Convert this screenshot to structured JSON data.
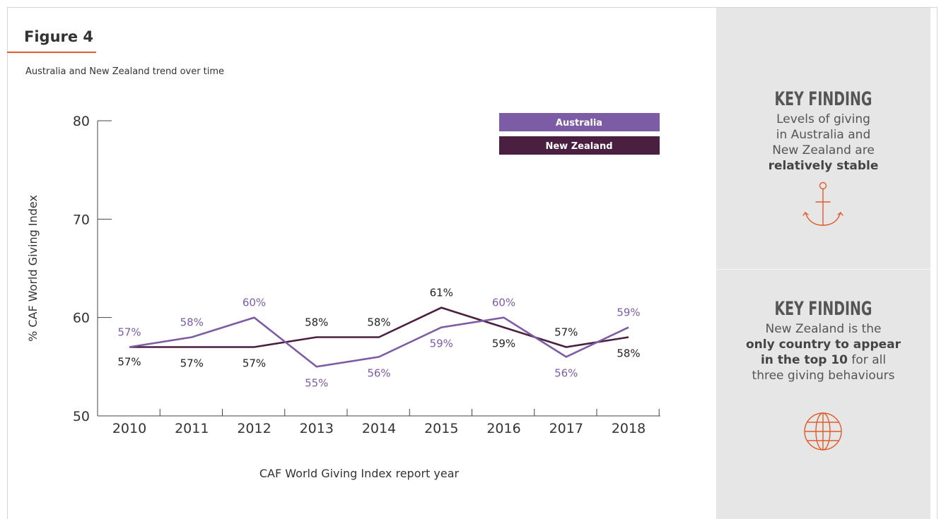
{
  "figure": {
    "title": "Figure 4",
    "subtitle": "Australia and New Zealand trend over time"
  },
  "chart_data": {
    "type": "line",
    "x": [
      2010,
      2011,
      2012,
      2013,
      2014,
      2015,
      2016,
      2017,
      2018
    ],
    "xlabel": "CAF World Giving Index report year",
    "ylabel": "% CAF World Giving Index",
    "ylim": [
      50,
      80
    ],
    "yticks": [
      50,
      60,
      70,
      80
    ],
    "grid": false,
    "legend_placement": "top-right",
    "series": [
      {
        "name": "Australia",
        "color": "#7d5ca6",
        "values": [
          57,
          58,
          60,
          55,
          56,
          59,
          60,
          56,
          59
        ],
        "labels": [
          "57%",
          "58%",
          "60%",
          "55%",
          "56%",
          "59%",
          "60%",
          "56%",
          "59%"
        ]
      },
      {
        "name": "New Zealand",
        "color": "#4a1f40",
        "values": [
          57,
          57,
          57,
          58,
          58,
          61,
          59,
          57,
          58
        ],
        "labels": [
          "57%",
          "57%",
          "57%",
          "58%",
          "58%",
          "61%",
          "59%",
          "57%",
          "58%"
        ]
      }
    ]
  },
  "sidebar": {
    "findings": [
      {
        "heading": "KEY FINDING",
        "lines": [
          "Levels of giving",
          "in Australia and",
          "New Zealand are"
        ],
        "bold_line": "relatively stable",
        "icon": "anchor-icon"
      },
      {
        "heading": "KEY FINDING",
        "line1": "New Zealand is the",
        "bold1": "only country to appear",
        "bold2": "in the top 10",
        "rest2": " for all",
        "line3": "three giving behaviours",
        "icon": "globe-icon"
      }
    ],
    "accent_color": "#e05c2a"
  }
}
